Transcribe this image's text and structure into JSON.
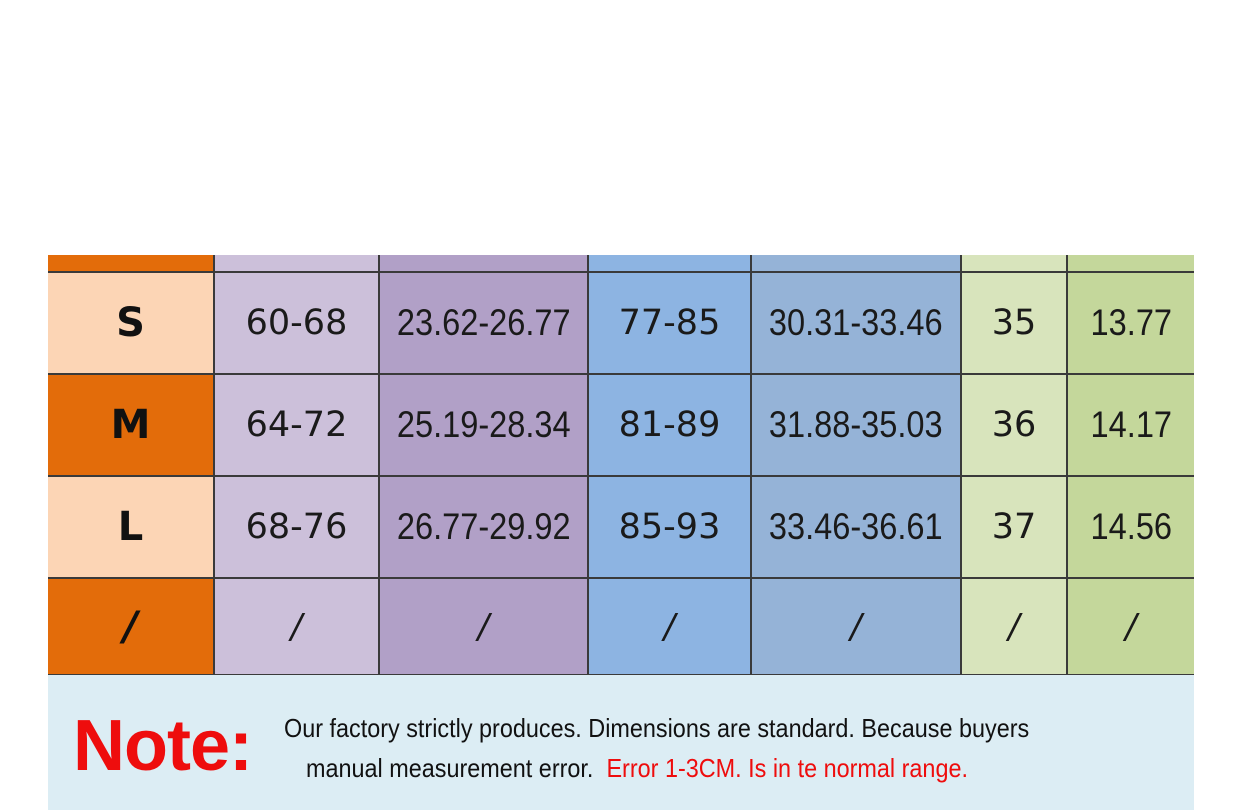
{
  "colors": {
    "col0_light": "#fcd5b5",
    "col0_dark": "#e36c0a",
    "col1": "#ccc0da",
    "col2": "#b1a0c7",
    "col3": "#8db4e2",
    "col4": "#95b3d7",
    "col5": "#d8e4bc",
    "col6": "#c4d79b",
    "note_bg": "#dcedf4",
    "note_red": "#ee0d0d"
  },
  "rows": [
    {
      "size": "S",
      "c1": "60-68",
      "c2": "23.62-26.77",
      "c3": "77-85",
      "c4": "30.31-33.46",
      "c5": "35",
      "c6": "13.77"
    },
    {
      "size": "M",
      "c1": "64-72",
      "c2": "25.19-28.34",
      "c3": "81-89",
      "c4": "31.88-35.03",
      "c5": "36",
      "c6": "14.17"
    },
    {
      "size": "L",
      "c1": "68-76",
      "c2": "26.77-29.92",
      "c3": "85-93",
      "c4": "33.46-36.61",
      "c5": "37",
      "c6": "14.56"
    },
    {
      "size": "/",
      "c1": "/",
      "c2": "/",
      "c3": "/",
      "c4": "/",
      "c5": "/",
      "c6": "/"
    }
  ],
  "note": {
    "label": "Note:",
    "line1": "Our factory strictly produces.  Dimensions are standard.  Because buyers",
    "line2_black": "manual measurement error.",
    "line2_red": "Error 1-3CM.  Is in te normal range."
  }
}
